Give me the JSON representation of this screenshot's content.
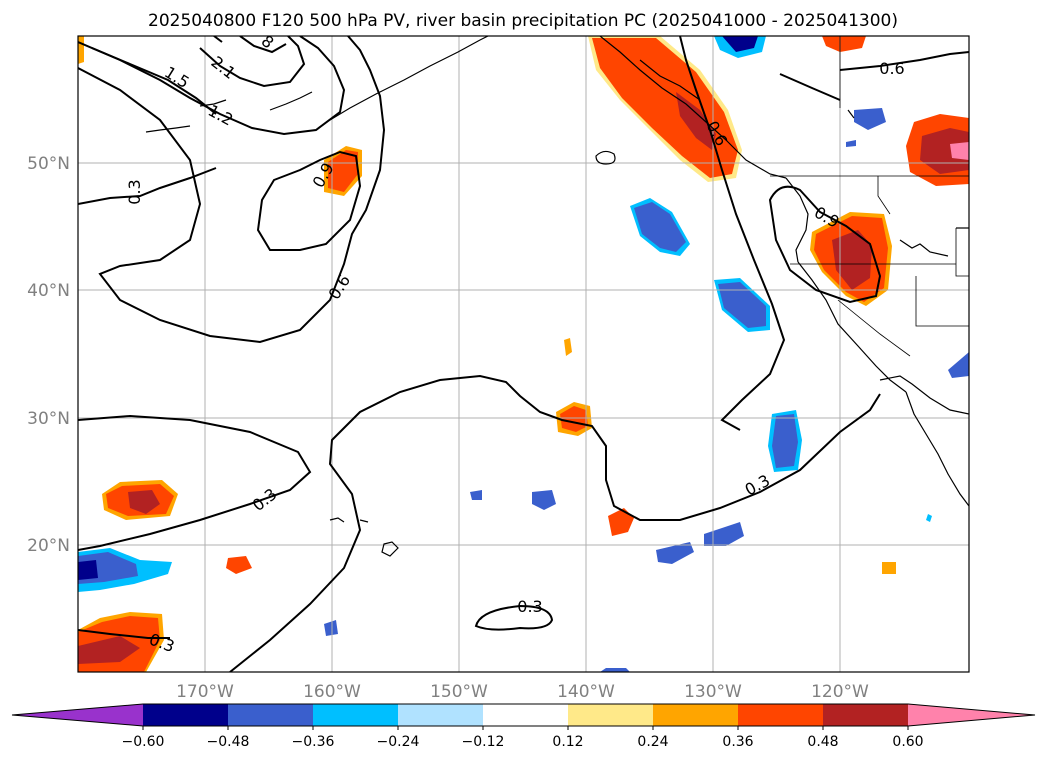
{
  "title": "2025040800 F120 500 hPa PV, river basin precipitation PC (2025041000 - 2025041300)",
  "map": {
    "lat_labels": [
      "50°N",
      "40°N",
      "30°N",
      "20°N"
    ],
    "lon_labels": [
      "170°W",
      "160°W",
      "150°W",
      "140°W",
      "130°W",
      "120°W"
    ],
    "contour_labels": [
      "0.3",
      "0.3",
      "0.3",
      "0.3",
      "0.3",
      "0.6",
      "0.6",
      "0.6",
      "0.9",
      "0.9",
      "1.2",
      "1.5",
      "2.1",
      "8"
    ],
    "colors": {
      "pos_low": "#ffe989",
      "pos_mid": "#ffa500",
      "pos_high": "#ff4500",
      "pos_higher": "#b22222",
      "pos_max": "#ff82ab",
      "neg_low": "#00bfff",
      "neg_mid": "#3a5fcd",
      "neg_high": "#00008b"
    }
  },
  "colorbar": {
    "tick_labels": [
      "−0.60",
      "−0.48",
      "−0.36",
      "−0.24",
      "−0.12",
      "0.12",
      "0.24",
      "0.36",
      "0.48",
      "0.60"
    ],
    "colors": [
      "#9932cc",
      "#00008b",
      "#3a5fcd",
      "#00bfff",
      "#b0e2ff",
      "#ffffff",
      "#ffe989",
      "#ffa500",
      "#ff4500",
      "#b22222",
      "#ff82ab"
    ]
  }
}
